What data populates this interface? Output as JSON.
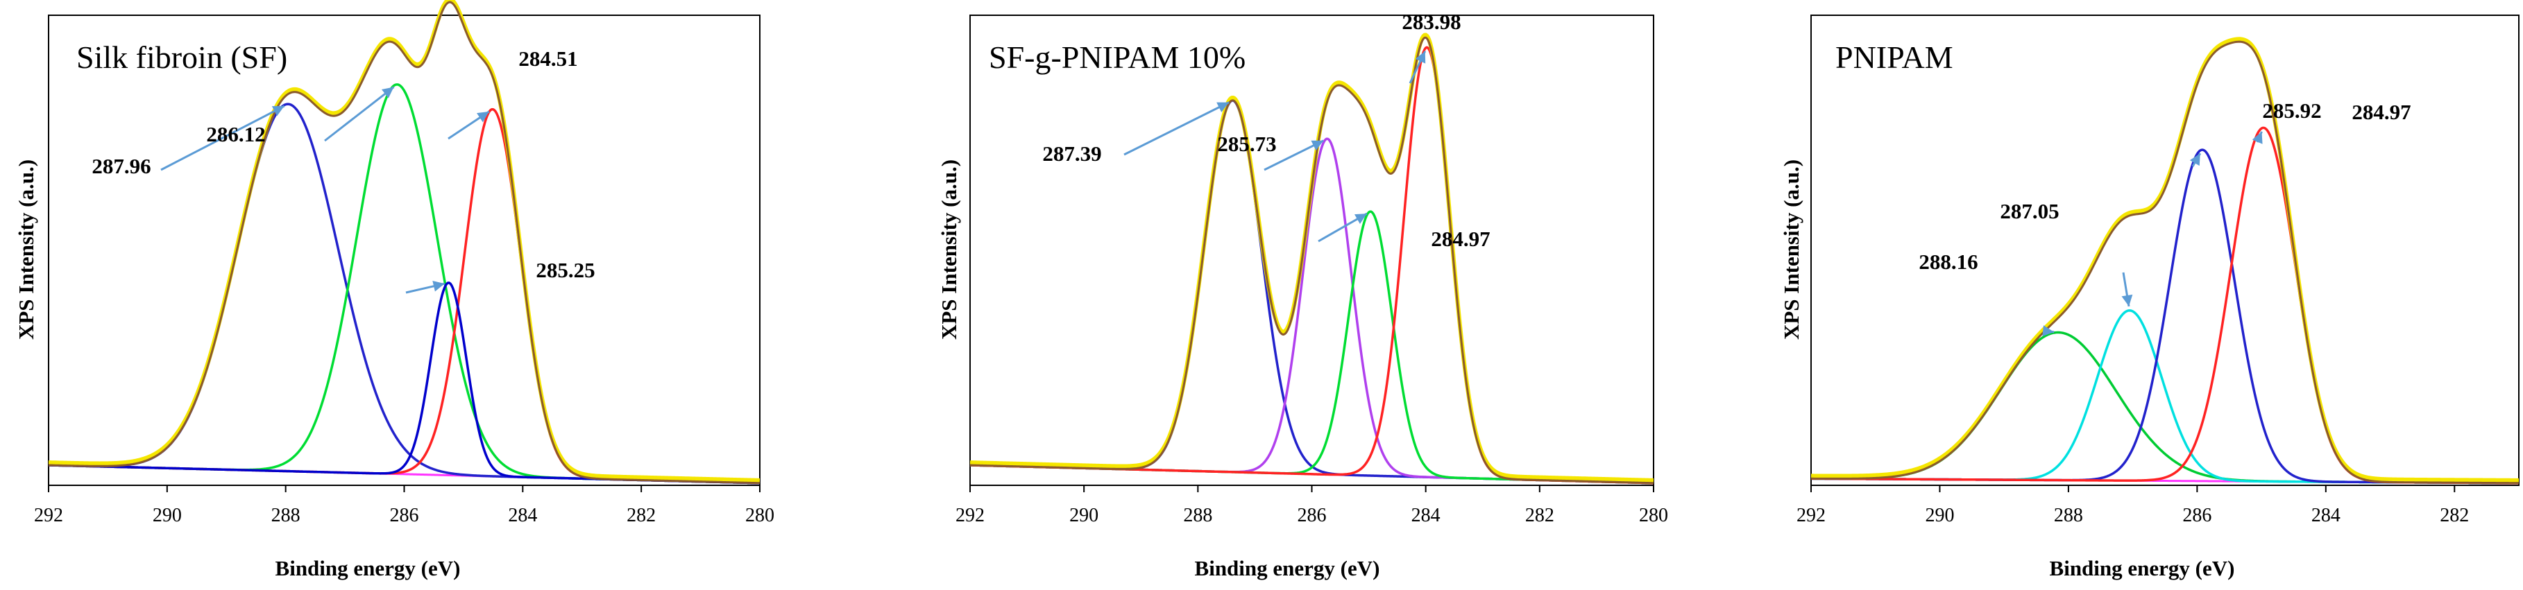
{
  "chart_data": [
    {
      "type": "line",
      "title": "Silk fibroin (SF)",
      "xlabel": "Binding energy (eV)",
      "ylabel": "XPS Intensity (a.u.)",
      "xlim": [
        292,
        280
      ],
      "ylim": [
        0,
        105
      ],
      "xticks": [
        "292",
        "290",
        "288",
        "286",
        "284",
        "282",
        "280"
      ],
      "baseline": {
        "left": 4.5,
        "right": 0.5
      },
      "peaks": [
        {
          "center": 287.96,
          "height": 82,
          "sigma": 0.85,
          "color": "#2222cc",
          "label": "287.96"
        },
        {
          "center": 286.12,
          "height": 87,
          "sigma": 0.68,
          "color": "#00dd33",
          "label": "286.12"
        },
        {
          "center": 284.51,
          "height": 82,
          "sigma": 0.47,
          "color": "#ff2222",
          "label": "284.51"
        },
        {
          "center": 285.25,
          "height": 43,
          "sigma": 0.3,
          "color": "#0000cc",
          "label": "285.25"
        }
      ]
    },
    {
      "type": "line",
      "title": "SF-g-PNIPAM 10%",
      "xlabel": "Binding energy (eV)",
      "ylabel": "XPS Intensity (a.u.)",
      "xlim": [
        292,
        280
      ],
      "ylim": [
        0,
        105
      ],
      "xticks": [
        "292",
        "290",
        "288",
        "286",
        "284",
        "282",
        "280"
      ],
      "baseline": {
        "left": 4.5,
        "right": 0.5
      },
      "peaks": [
        {
          "center": 287.39,
          "height": 83,
          "sigma": 0.5,
          "color": "#2222cc",
          "label": "287.39"
        },
        {
          "center": 285.73,
          "height": 75,
          "sigma": 0.42,
          "color": "#b040ee",
          "label": "285.73"
        },
        {
          "center": 284.97,
          "height": 59,
          "sigma": 0.38,
          "color": "#00dd33",
          "label": "284.97"
        },
        {
          "center": 283.98,
          "height": 96,
          "sigma": 0.4,
          "color": "#ff2222",
          "label": "283.98"
        }
      ]
    },
    {
      "type": "line",
      "title": "PNIPAM",
      "xlabel": "Binding energy (eV)",
      "ylabel": "XPS Intensity (a.u.)",
      "xlim": [
        292,
        281
      ],
      "ylim": [
        0,
        105
      ],
      "xticks": [
        "292",
        "290",
        "288",
        "286",
        "284",
        "282"
      ],
      "baseline": {
        "left": 1.5,
        "right": 0.5
      },
      "peaks": [
        {
          "center": 288.16,
          "height": 33,
          "sigma": 0.9,
          "color": "#00cc33",
          "label": "288.16"
        },
        {
          "center": 287.05,
          "height": 38,
          "sigma": 0.5,
          "color": "#00e0e0",
          "label": "287.05"
        },
        {
          "center": 285.92,
          "height": 74,
          "sigma": 0.5,
          "color": "#2222cc",
          "label": "285.92"
        },
        {
          "center": 284.97,
          "height": 79,
          "sigma": 0.5,
          "color": "#ff2222",
          "label": "284.97"
        }
      ]
    }
  ]
}
